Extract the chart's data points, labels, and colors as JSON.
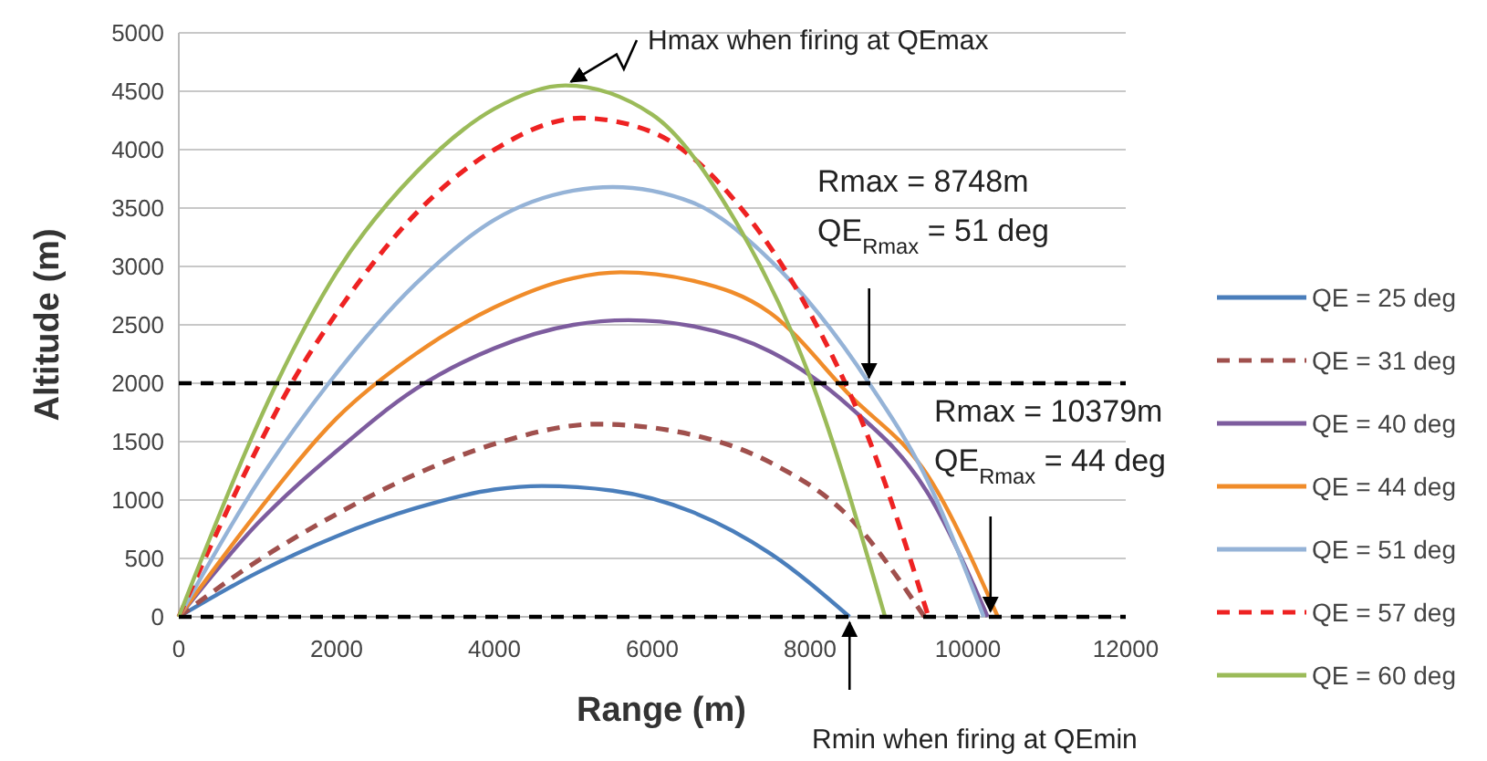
{
  "chart_data": {
    "type": "line",
    "xlabel": "Range (m)",
    "ylabel": "Altitude (m)",
    "xlim": [
      0,
      12000
    ],
    "xticks": [
      0,
      2000,
      4000,
      6000,
      8000,
      10000,
      12000
    ],
    "ylim": [
      0,
      5000
    ],
    "yticks": [
      0,
      500,
      1000,
      1500,
      2000,
      2500,
      3000,
      3500,
      4000,
      4500,
      5000
    ],
    "grid": "y",
    "legend": "right",
    "marker": "none",
    "series": [
      {
        "name": "QE = 25 deg",
        "color": "#4a7ebb",
        "line_style": "solid",
        "x": [
          0,
          1000,
          2000,
          3000,
          4000,
          4600,
          5500,
          6500,
          7500,
          8500
        ],
        "values": [
          0,
          380,
          690,
          930,
          1090,
          1120,
          1080,
          900,
          540,
          0
        ]
      },
      {
        "name": "QE = 31 deg",
        "color": "#a0504d",
        "line_style": "dashed",
        "x": [
          0,
          1000,
          2000,
          3000,
          4000,
          5300,
          6500,
          7500,
          8500,
          9450
        ],
        "values": [
          0,
          480,
          880,
          1220,
          1480,
          1650,
          1560,
          1320,
          850,
          0
        ]
      },
      {
        "name": "QE = 40 deg",
        "color": "#7d5c9e",
        "line_style": "solid",
        "x": [
          0,
          1000,
          2000,
          3000,
          4000,
          5000,
          5700,
          6500,
          7500,
          8500,
          9500,
          10250
        ],
        "values": [
          0,
          800,
          1420,
          1950,
          2300,
          2500,
          2540,
          2490,
          2270,
          1800,
          1050,
          0
        ]
      },
      {
        "name": "QE = 44 deg",
        "color": "#f08c2a",
        "line_style": "solid",
        "x": [
          0,
          1000,
          2000,
          3000,
          4000,
          5000,
          5600,
          6500,
          7500,
          8500,
          9500,
          10379
        ],
        "values": [
          0,
          900,
          1700,
          2250,
          2650,
          2900,
          2950,
          2880,
          2600,
          1900,
          1200,
          0
        ]
      },
      {
        "name": "QE = 51 deg",
        "color": "#95b3d7",
        "line_style": "solid",
        "x": [
          0,
          1000,
          1900,
          3000,
          4000,
          5000,
          5500,
          6500,
          7500,
          8748,
          9500,
          10200
        ],
        "values": [
          0,
          1150,
          2000,
          2850,
          3400,
          3650,
          3680,
          3550,
          3050,
          2000,
          1150,
          0
        ]
      },
      {
        "name": "QE = 57 deg",
        "color": "#ee2222",
        "line_style": "dashed",
        "x": [
          0,
          1000,
          1430,
          2000,
          3000,
          4000,
          5100,
          6000,
          7000,
          8000,
          8700,
          9500
        ],
        "values": [
          0,
          1450,
          2000,
          2600,
          3450,
          4000,
          4270,
          4150,
          3600,
          2600,
          1600,
          0
        ]
      },
      {
        "name": "QE = 60 deg",
        "color": "#9bbb59",
        "line_style": "solid",
        "x": [
          0,
          1000,
          1240,
          2000,
          3000,
          4000,
          4900,
          6000,
          7000,
          8000,
          8950
        ],
        "values": [
          0,
          1650,
          2000,
          2950,
          3800,
          4350,
          4550,
          4300,
          3450,
          2050,
          0
        ]
      }
    ],
    "ref_lines": [
      {
        "axis": "y",
        "value": 2000,
        "color": "#000000",
        "line_style": "dashed"
      },
      {
        "axis": "y",
        "value": 0,
        "color": "#000000",
        "line_style": "dashed"
      }
    ],
    "annotations": [
      {
        "text": "Hmax when firing at QEmax",
        "x": 4900,
        "y": 4550
      },
      {
        "text": "Rmax = 8748m\nQE$_{Rmax}$ = 51 deg",
        "x": 8748,
        "y": 2000
      },
      {
        "text": "Rmax = 10379m\nQE$_{Rmax}$ = 44 deg",
        "x": 10379,
        "y": 0
      },
      {
        "text": "Rmin when firing at QEmin",
        "x": 8500,
        "y": 0
      }
    ]
  }
}
